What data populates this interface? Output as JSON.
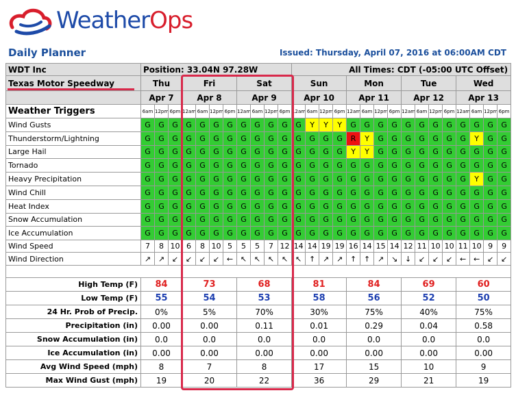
{
  "header": {
    "logo_weather": "Weather",
    "logo_ops": "Ops",
    "title": "Daily Planner",
    "issued": "Issued: Thursday, April 07, 2016 at 06:00AM CDT"
  },
  "table": {
    "company": "WDT Inc",
    "position": "Position: 33.04N 97.28W",
    "times_note": "All Times: CDT (-05:00 UTC Offset)",
    "location": "Texas Motor Speedway",
    "triggers_label": "Weather Triggers",
    "days": [
      {
        "name": "Thu",
        "date": "Apr 7",
        "times": [
          "6am",
          "12pm",
          "6pm"
        ]
      },
      {
        "name": "Fri",
        "date": "Apr 8",
        "times": [
          "12am",
          "6am",
          "12pm",
          "6pm"
        ]
      },
      {
        "name": "Sat",
        "date": "Apr 9",
        "times": [
          "12am",
          "6am",
          "12pm",
          "6pm"
        ]
      },
      {
        "name": "Sun",
        "date": "Apr 10",
        "times": [
          "12am",
          "6am",
          "12pm",
          "6pm"
        ]
      },
      {
        "name": "Mon",
        "date": "Apr 11",
        "times": [
          "12am",
          "6am",
          "12pm",
          "6pm"
        ]
      },
      {
        "name": "Tue",
        "date": "Apr 12",
        "times": [
          "12am",
          "6am",
          "12pm",
          "6pm"
        ]
      },
      {
        "name": "Wed",
        "date": "Apr 13",
        "times": [
          "12am",
          "6am",
          "12pm",
          "6pm"
        ]
      }
    ],
    "trigger_colors": {
      "G": "#33cc33",
      "Y": "#ffff00",
      "R": "#ee1111"
    },
    "triggers": [
      {
        "label": "Wind Gusts",
        "cells": [
          "G",
          "G",
          "G",
          "G",
          "G",
          "G",
          "G",
          "G",
          "G",
          "G",
          "G",
          "G",
          "Y",
          "Y",
          "Y",
          "G",
          "G",
          "G",
          "G",
          "G",
          "G",
          "G",
          "G",
          "G",
          "G",
          "G",
          "G"
        ]
      },
      {
        "label": "Thunderstorm/Lightning",
        "cells": [
          "G",
          "G",
          "G",
          "G",
          "G",
          "G",
          "G",
          "G",
          "G",
          "G",
          "G",
          "G",
          "G",
          "G",
          "G",
          "R",
          "Y",
          "G",
          "G",
          "G",
          "G",
          "G",
          "G",
          "G",
          "Y",
          "G",
          "G"
        ]
      },
      {
        "label": "Large Hail",
        "cells": [
          "G",
          "G",
          "G",
          "G",
          "G",
          "G",
          "G",
          "G",
          "G",
          "G",
          "G",
          "G",
          "G",
          "G",
          "G",
          "Y",
          "Y",
          "G",
          "G",
          "G",
          "G",
          "G",
          "G",
          "G",
          "G",
          "G",
          "G"
        ]
      },
      {
        "label": "Tornado",
        "cells": [
          "G",
          "G",
          "G",
          "G",
          "G",
          "G",
          "G",
          "G",
          "G",
          "G",
          "G",
          "G",
          "G",
          "G",
          "G",
          "G",
          "G",
          "G",
          "G",
          "G",
          "G",
          "G",
          "G",
          "G",
          "G",
          "G",
          "G"
        ]
      },
      {
        "label": "Heavy Precipitation",
        "cells": [
          "G",
          "G",
          "G",
          "G",
          "G",
          "G",
          "G",
          "G",
          "G",
          "G",
          "G",
          "G",
          "G",
          "G",
          "G",
          "G",
          "G",
          "G",
          "G",
          "G",
          "G",
          "G",
          "G",
          "G",
          "Y",
          "G",
          "G"
        ]
      },
      {
        "label": "Wind Chill",
        "cells": [
          "G",
          "G",
          "G",
          "G",
          "G",
          "G",
          "G",
          "G",
          "G",
          "G",
          "G",
          "G",
          "G",
          "G",
          "G",
          "G",
          "G",
          "G",
          "G",
          "G",
          "G",
          "G",
          "G",
          "G",
          "G",
          "G",
          "G"
        ]
      },
      {
        "label": "Heat Index",
        "cells": [
          "G",
          "G",
          "G",
          "G",
          "G",
          "G",
          "G",
          "G",
          "G",
          "G",
          "G",
          "G",
          "G",
          "G",
          "G",
          "G",
          "G",
          "G",
          "G",
          "G",
          "G",
          "G",
          "G",
          "G",
          "G",
          "G",
          "G"
        ]
      },
      {
        "label": "Snow Accumulation",
        "cells": [
          "G",
          "G",
          "G",
          "G",
          "G",
          "G",
          "G",
          "G",
          "G",
          "G",
          "G",
          "G",
          "G",
          "G",
          "G",
          "G",
          "G",
          "G",
          "G",
          "G",
          "G",
          "G",
          "G",
          "G",
          "G",
          "G",
          "G"
        ]
      },
      {
        "label": "Ice Accumulation",
        "cells": [
          "G",
          "G",
          "G",
          "G",
          "G",
          "G",
          "G",
          "G",
          "G",
          "G",
          "G",
          "G",
          "G",
          "G",
          "G",
          "G",
          "G",
          "G",
          "G",
          "G",
          "G",
          "G",
          "G",
          "G",
          "G",
          "G",
          "G"
        ]
      }
    ],
    "wind": [
      {
        "label": "Wind Speed",
        "cells": [
          7,
          8,
          10,
          6,
          8,
          10,
          5,
          5,
          5,
          7,
          12,
          14,
          14,
          19,
          19,
          16,
          14,
          15,
          14,
          12,
          11,
          10,
          10,
          11,
          10,
          9,
          9
        ]
      },
      {
        "label": "Wind Direction",
        "cells": [
          "↗",
          "↗",
          "↙",
          "↙",
          "↙",
          "↙",
          "←",
          "↖",
          "↖",
          "↖",
          "↖",
          "↖",
          "↑",
          "↗",
          "↗",
          "↑",
          "↑",
          "↗",
          "↘",
          "↓",
          "↙",
          "↙",
          "↙",
          "←",
          "←",
          "↙",
          "↙"
        ]
      }
    ],
    "summary": [
      {
        "label": "High Temp (F)",
        "color": "#e02020",
        "values": [
          84,
          73,
          68,
          81,
          84,
          69,
          60
        ]
      },
      {
        "label": "Low Temp (F)",
        "color": "#1d3fb0",
        "values": [
          55,
          54,
          53,
          58,
          56,
          52,
          50
        ]
      },
      {
        "label": "24 Hr. Prob of Precip.",
        "values": [
          "0%",
          "5%",
          "70%",
          "30%",
          "75%",
          "40%",
          "75%"
        ]
      },
      {
        "label": "Precipitation (in)",
        "values": [
          "0.00",
          "0.00",
          "0.11",
          "0.01",
          "0.29",
          "0.04",
          "0.58"
        ]
      },
      {
        "label": "Snow Accumulation (in)",
        "values": [
          "0.0",
          "0.0",
          "0.0",
          "0.0",
          "0.0",
          "0.0",
          "0.0"
        ]
      },
      {
        "label": "Ice Accumulation (in)",
        "values": [
          "0.00",
          "0.00",
          "0.00",
          "0.00",
          "0.00",
          "0.00",
          "0.00"
        ]
      },
      {
        "label": "Avg Wind Speed (mph)",
        "values": [
          8,
          7,
          8,
          17,
          15,
          10,
          9
        ]
      },
      {
        "label": "Max Wind Gust (mph)",
        "values": [
          19,
          20,
          22,
          36,
          29,
          21,
          19
        ]
      }
    ]
  }
}
